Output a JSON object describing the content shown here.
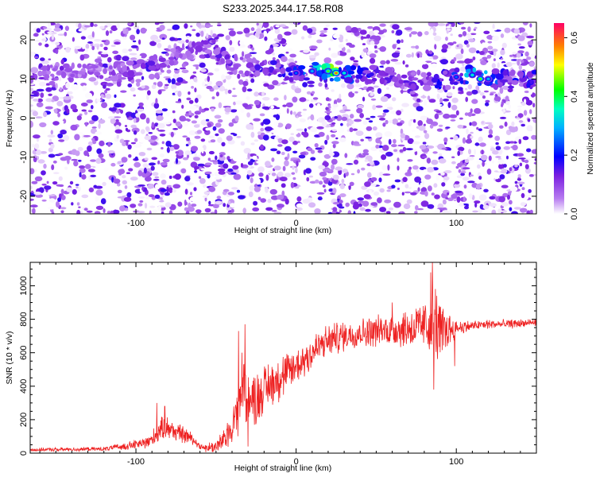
{
  "title": "S233.2025.344.17.58.R08",
  "chart_data": [
    {
      "type": "heatmap",
      "xlabel": "Height of straight line (km)",
      "ylabel": "Frequency (Hz)",
      "xlim": [
        -166,
        150
      ],
      "ylim": [
        -24.5,
        24.5
      ],
      "xticks": [
        -100,
        0,
        100
      ],
      "yticks": [
        -20,
        -10,
        0,
        10,
        20
      ],
      "colorbar": {
        "label": "Normalized spectral amplitude",
        "range": [
          0.0,
          0.65
        ],
        "ticks": [
          0.0,
          0.2,
          0.4,
          0.6
        ],
        "colors": [
          "#ffffff",
          "#8a2be2",
          "#0000ff",
          "#00ffff",
          "#00ff00",
          "#ffff00",
          "#ff8000",
          "#ff0066"
        ]
      },
      "ridge": {
        "description_values_x_km": [
          -130,
          -110,
          -95,
          -80,
          -65,
          -52,
          -40,
          -30,
          -20,
          -10,
          0,
          10,
          20,
          25,
          30,
          40,
          50,
          60,
          70,
          80,
          90,
          100,
          110,
          115,
          120,
          130,
          140
        ],
        "frequency_hz": [
          11.5,
          12,
          13,
          15,
          17,
          18,
          14,
          13,
          12.5,
          12,
          11.5,
          12,
          12,
          11.5,
          11.5,
          11,
          11,
          10.5,
          10,
          9.5,
          10,
          10.5,
          11,
          10,
          10,
          10,
          10
        ],
        "peak_amplitude": [
          0.1,
          0.12,
          0.2,
          0.1,
          0.12,
          0.15,
          0.15,
          0.15,
          0.18,
          0.2,
          0.25,
          0.3,
          0.45,
          0.6,
          0.35,
          0.2,
          0.18,
          0.15,
          0.15,
          0.15,
          0.2,
          0.25,
          0.35,
          0.45,
          0.3,
          0.22,
          0.2
        ]
      }
    },
    {
      "type": "line",
      "xlabel": "Height of straight line (km)",
      "ylabel": "SNR (10 * v/v)",
      "xlim": [
        -166,
        150
      ],
      "ylim": [
        0,
        1140
      ],
      "xticks": [
        -100,
        0,
        100
      ],
      "yticks": [
        0,
        200,
        400,
        600,
        800,
        1000
      ],
      "color": "#ee2222",
      "trend_x": [
        -166,
        -120,
        -108,
        -95,
        -90,
        -85,
        -80,
        -75,
        -70,
        -65,
        -60,
        -55,
        -50,
        -45,
        -40,
        -37,
        -35,
        -33,
        -30,
        -25,
        -20,
        -15,
        -10,
        -5,
        0,
        5,
        10,
        15,
        20,
        25,
        30,
        40,
        50,
        60,
        70,
        75,
        80,
        85,
        88,
        90,
        95,
        100,
        110,
        120,
        130,
        140,
        150
      ],
      "trend_y": [
        20,
        25,
        40,
        60,
        80,
        140,
        150,
        130,
        110,
        90,
        40,
        30,
        40,
        80,
        160,
        250,
        330,
        420,
        300,
        330,
        380,
        420,
        450,
        480,
        520,
        560,
        600,
        640,
        670,
        690,
        700,
        720,
        730,
        740,
        745,
        750,
        760,
        800,
        760,
        720,
        740,
        750,
        760,
        770,
        770,
        775,
        780
      ],
      "noise_x": [
        -166,
        -120,
        -95,
        -85,
        -80,
        -70,
        -60,
        -45,
        -38,
        -35,
        -30,
        -20,
        -10,
        0,
        20,
        40,
        60,
        70,
        80,
        85,
        90,
        95,
        100,
        110,
        150
      ],
      "noise_amp": [
        8,
        10,
        25,
        55,
        60,
        40,
        15,
        50,
        90,
        180,
        140,
        120,
        110,
        100,
        80,
        70,
        80,
        100,
        120,
        220,
        150,
        90,
        40,
        25,
        20
      ],
      "spikes": [
        {
          "x": -87,
          "y": 300
        },
        {
          "x": -82,
          "y": 280
        },
        {
          "x": -36,
          "y": 730
        },
        {
          "x": -32,
          "y": 770
        },
        {
          "x": -30,
          "y": 40
        },
        {
          "x": 85,
          "y": 1140
        },
        {
          "x": 86,
          "y": 380
        },
        {
          "x": 84,
          "y": 1080
        },
        {
          "x": 99,
          "y": 520
        },
        {
          "x": 60,
          "y": 900
        }
      ]
    }
  ]
}
